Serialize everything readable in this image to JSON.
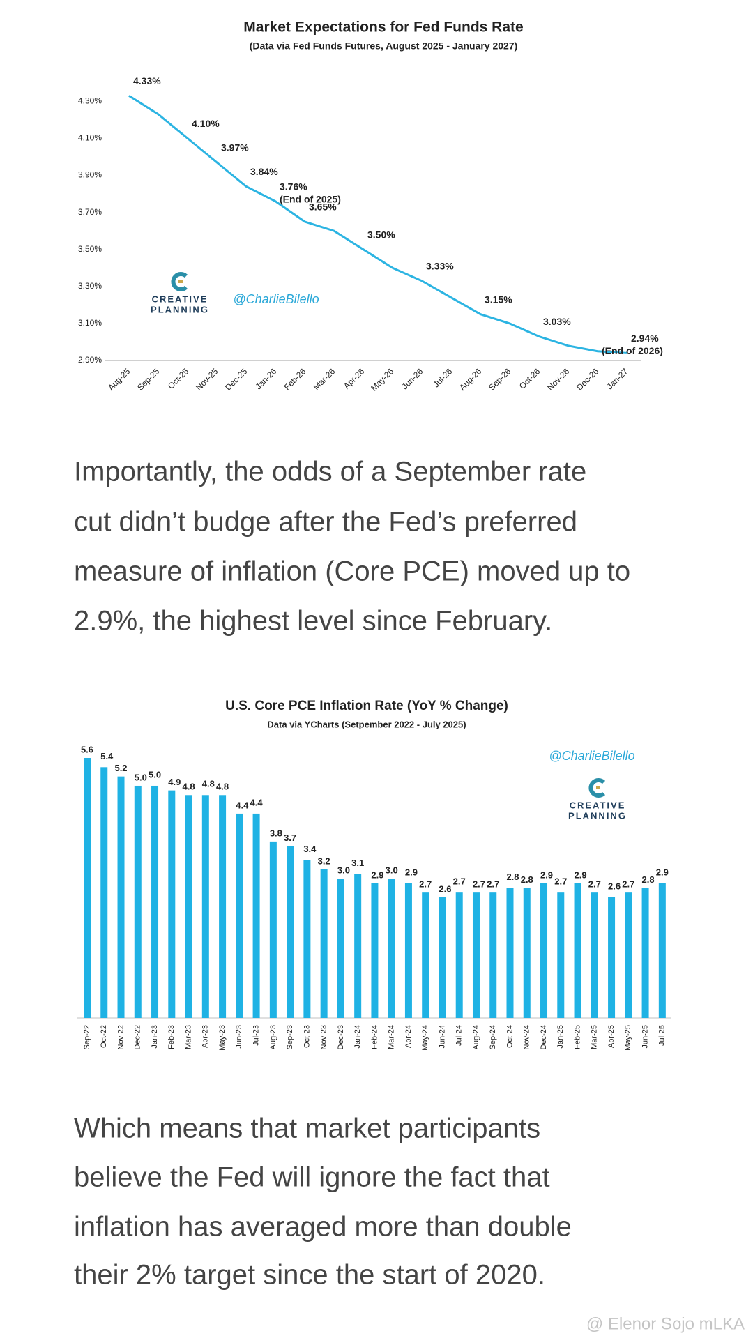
{
  "chart_data": [
    {
      "type": "line",
      "title": "Market Expectations for Fed Funds Rate",
      "subtitle": "(Data via Fed Funds Futures, August 2025 - January 2027)",
      "categories": [
        "Aug-25",
        "Sep-25",
        "Oct-25",
        "Nov-25",
        "Dec-25",
        "Jan-26",
        "Feb-26",
        "Mar-26",
        "Apr-26",
        "May-26",
        "Jun-26",
        "Jul-26",
        "Aug-26",
        "Sep-26",
        "Oct-26",
        "Nov-26",
        "Dec-26",
        "Jan-27"
      ],
      "values": [
        4.33,
        4.23,
        4.1,
        3.97,
        3.84,
        3.76,
        3.65,
        3.6,
        3.5,
        3.4,
        3.33,
        3.24,
        3.15,
        3.1,
        3.03,
        2.98,
        2.95,
        2.94
      ],
      "value_labels": [
        "4.33%",
        null,
        "4.10%",
        "3.97%",
        "3.84%",
        "3.76%",
        "3.65%",
        null,
        "3.50%",
        null,
        "3.33%",
        null,
        "3.15%",
        null,
        "3.03%",
        null,
        null,
        "2.94%"
      ],
      "annotations": [
        "(End of 2025)",
        "(End of 2026)"
      ],
      "color": "#2cb4e2",
      "ylim": [
        2.9,
        4.35
      ],
      "yticks": [
        {
          "value": 2.9,
          "label": "2.90%"
        },
        {
          "value": 3.1,
          "label": "3.10%"
        },
        {
          "value": 3.3,
          "label": "3.30%"
        },
        {
          "value": 3.5,
          "label": "3.50%"
        },
        {
          "value": 3.7,
          "label": "3.70%"
        },
        {
          "value": 3.9,
          "label": "3.90%"
        },
        {
          "value": 4.1,
          "label": "4.10%"
        },
        {
          "value": 4.3,
          "label": "4.30%"
        }
      ],
      "grid": false,
      "handle": "@CharlieBilello",
      "logo": [
        "CREATIVE",
        "PLANNING"
      ]
    },
    {
      "type": "bar",
      "title": "U.S. Core PCE Inflation Rate (YoY % Change)",
      "subtitle": "Data via YCharts (Setpember 2022 - July 2025)",
      "categories": [
        "Sep-22",
        "Oct-22",
        "Nov-22",
        "Dec-22",
        "Jan-23",
        "Feb-23",
        "Mar-23",
        "Apr-23",
        "May-23",
        "Jun-23",
        "Jul-23",
        "Aug-23",
        "Sep-23",
        "Oct-23",
        "Nov-23",
        "Dec-23",
        "Jan-24",
        "Feb-24",
        "Mar-24",
        "Apr-24",
        "May-24",
        "Jun-24",
        "Jul-24",
        "Aug-24",
        "Sep-24",
        "Oct-24",
        "Nov-24",
        "Dec-24",
        "Jan-25",
        "Feb-25",
        "Mar-25",
        "Apr-25",
        "May-25",
        "Jun-25",
        "Jul-25"
      ],
      "values": [
        5.6,
        5.4,
        5.2,
        5.0,
        5.0,
        4.9,
        4.8,
        4.8,
        4.8,
        4.4,
        4.4,
        3.8,
        3.7,
        3.4,
        3.2,
        3.0,
        3.1,
        2.9,
        3.0,
        2.9,
        2.7,
        2.6,
        2.7,
        2.7,
        2.7,
        2.8,
        2.8,
        2.9,
        2.7,
        2.9,
        2.7,
        2.6,
        2.7,
        2.8,
        2.9
      ],
      "value_labels": [
        "5.6",
        "5.4",
        "5.2",
        "5.0",
        "5.0",
        "4.9",
        "4.8",
        "4.8",
        "4.8",
        "4.4",
        "4.4",
        "3.8",
        "3.7",
        "3.4",
        "3.2",
        "3.0",
        "3.1",
        "2.9",
        "3.0",
        "2.9",
        "2.7",
        "2.6",
        "2.7",
        "2.7",
        "2.7",
        "2.8",
        "2.8",
        "2.9",
        "2.7",
        "2.9",
        "2.7",
        "2.6",
        "2.7",
        "2.8",
        "2.9"
      ],
      "color": "#1fb2e4",
      "ylim": [
        0,
        5.6
      ],
      "handle": "@CharlieBilello",
      "logo": [
        "CREATIVE",
        "PLANNING"
      ]
    }
  ],
  "paragraphs": [
    [
      "Importantly, the odds of a September rate",
      "cut didn’t budge after the Fed’s preferred",
      "measure of inflation (Core PCE) moved up to",
      "2.9%, the highest level since February."
    ],
    [
      "Which means that market participants",
      "believe the Fed will ignore the fact that",
      "inflation has averaged more than double",
      "their 2% target since the start of 2020."
    ]
  ],
  "watermark": "@ Elenor Sojo mLKA"
}
